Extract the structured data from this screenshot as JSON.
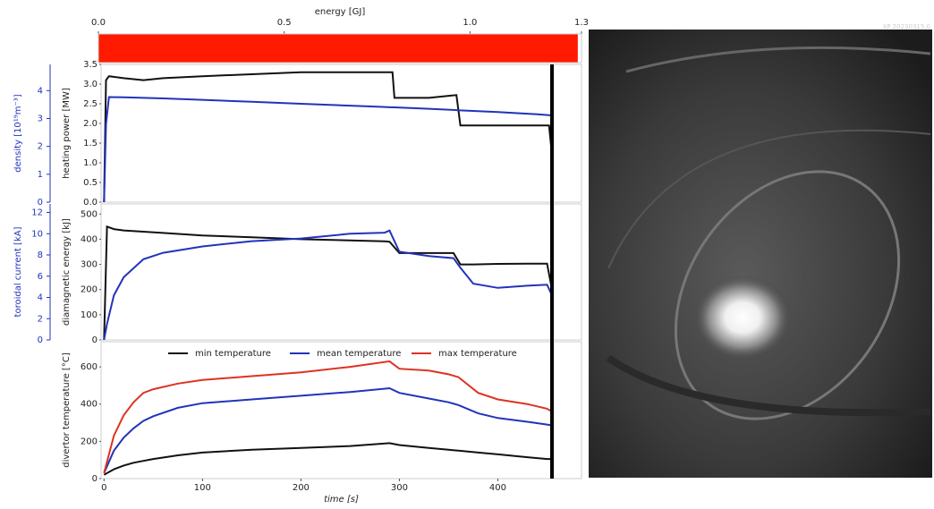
{
  "chart_data": [
    {
      "type": "hbar",
      "xlabel": "energy [GJ]",
      "xlim": [
        0,
        1.3
      ],
      "xticks": [
        {
          "value": 0,
          "label": "0.0"
        },
        0.5,
        {
          "value": 1,
          "label": "1.0"
        },
        1.3
      ],
      "values": [
        1.29
      ],
      "color": "#ff1a00"
    },
    {
      "type": "line",
      "ylabel": "heating power [MW]",
      "y2label": "density [10¹⁹m⁻³]",
      "xlim": [
        -3,
        485
      ],
      "ylim": [
        0,
        3.5
      ],
      "yticks": [
        {
          "value": 0,
          "label": "0.0"
        },
        0.5,
        {
          "value": 1,
          "label": "1.0"
        },
        1.5,
        {
          "value": 2,
          "label": "2.0"
        },
        2.5,
        {
          "value": 3,
          "label": "3.0"
        },
        3.5
      ],
      "y2lim": [
        0,
        4.94
      ],
      "y2ticks": [
        0,
        1,
        2,
        3,
        4
      ],
      "x": [
        0,
        2,
        5,
        20,
        40,
        60,
        100,
        150,
        200,
        250,
        280,
        293,
        295,
        330,
        358,
        362,
        400,
        440,
        452,
        455
      ],
      "series": [
        {
          "color": "#111111",
          "values": [
            0,
            3.1,
            3.2,
            3.15,
            3.1,
            3.15,
            3.2,
            3.25,
            3.3,
            3.3,
            3.3,
            3.3,
            2.65,
            2.65,
            2.72,
            1.95,
            1.95,
            1.95,
            1.95,
            1.2
          ]
        },
        {
          "color": "#2233bb",
          "axis": "y2",
          "values": [
            0,
            2.8,
            3.77,
            3.76,
            3.74,
            3.72,
            3.67,
            3.6,
            3.53,
            3.46,
            3.42,
            3.4,
            3.4,
            3.35,
            3.3,
            3.29,
            3.23,
            3.15,
            3.12,
            3.1
          ]
        }
      ]
    },
    {
      "type": "line",
      "ylabel": "diamagnetic energy [kJ]",
      "y2label": "toroidal current [kA]",
      "xlim": [
        -3,
        485
      ],
      "ylim": [
        0,
        540
      ],
      "yticks": [
        0,
        100,
        200,
        300,
        400,
        500
      ],
      "y2lim": [
        0,
        12.8
      ],
      "y2ticks": [
        0,
        2,
        4,
        6,
        8,
        10,
        12
      ],
      "x": [
        0,
        3,
        10,
        20,
        40,
        60,
        100,
        150,
        200,
        250,
        285,
        290,
        300,
        330,
        355,
        362,
        375,
        400,
        430,
        450,
        455
      ],
      "series": [
        {
          "color": "#111111",
          "values": [
            0,
            450,
            440,
            435,
            430,
            425,
            415,
            408,
            400,
            395,
            392,
            390,
            345,
            345,
            345,
            300,
            300,
            302,
            303,
            303,
            200
          ]
        },
        {
          "color": "#2233bb",
          "axis": "y2",
          "values": [
            0,
            1.5,
            4.2,
            5.9,
            7.6,
            8.2,
            8.8,
            9.3,
            9.55,
            10,
            10.1,
            10.3,
            8.3,
            7.9,
            7.7,
            6.8,
            5.3,
            4.9,
            5.1,
            5.2,
            4.2
          ]
        }
      ]
    },
    {
      "type": "line",
      "ylabel": "divertor temperature [°C]",
      "xlabel": "time [s]",
      "xlim": [
        -3,
        485
      ],
      "xticks": [
        0,
        100,
        200,
        300,
        400
      ],
      "ylim": [
        0,
        735
      ],
      "yticks": [
        0,
        200,
        400,
        600
      ],
      "cursor": 455,
      "x": [
        0,
        10,
        20,
        30,
        40,
        50,
        75,
        100,
        150,
        200,
        250,
        290,
        300,
        330,
        350,
        360,
        380,
        400,
        430,
        450,
        455
      ],
      "series": [
        {
          "name": "min temperature",
          "color": "#111111",
          "values": [
            20,
            50,
            70,
            85,
            95,
            105,
            125,
            140,
            155,
            165,
            175,
            190,
            180,
            165,
            155,
            150,
            140,
            130,
            115,
            105,
            105
          ]
        },
        {
          "name": "mean temperature",
          "color": "#2233bb",
          "values": [
            30,
            150,
            220,
            270,
            310,
            335,
            380,
            405,
            425,
            445,
            465,
            485,
            460,
            430,
            410,
            395,
            350,
            325,
            305,
            290,
            285
          ]
        },
        {
          "name": "max temperature",
          "color": "#dd3322",
          "values": [
            30,
            230,
            340,
            410,
            460,
            480,
            510,
            530,
            550,
            570,
            600,
            630,
            590,
            580,
            560,
            545,
            460,
            425,
            400,
            375,
            360
          ]
        }
      ]
    }
  ],
  "camera": {
    "label": "XP 20230315.0"
  }
}
